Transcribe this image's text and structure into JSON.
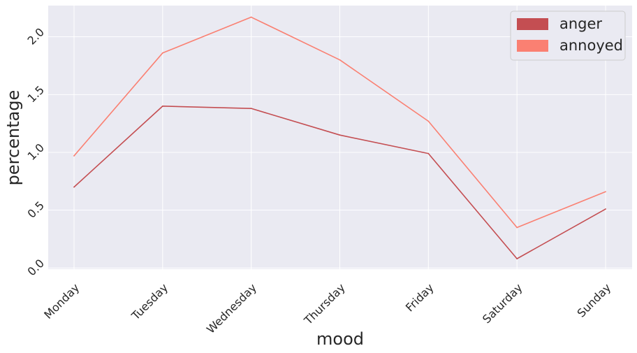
{
  "chart_data": {
    "type": "line",
    "xlabel": "mood",
    "ylabel": "percentage",
    "categories": [
      "Monday",
      "Tuesday",
      "Wednesday",
      "Thursday",
      "Friday",
      "Saturday",
      "Sunday"
    ],
    "ylim": [
      -0.01,
      2.27
    ],
    "yticks": [
      "0.0",
      "0.5",
      "1.0",
      "1.5",
      "2.0"
    ],
    "series": [
      {
        "name": "anger",
        "color": "#c44e52",
        "values": [
          0.7,
          1.4,
          1.38,
          1.15,
          0.99,
          0.08,
          0.51
        ]
      },
      {
        "name": "annoyed",
        "color": "#fa8072",
        "values": [
          0.97,
          1.86,
          2.17,
          1.8,
          1.27,
          0.35,
          0.66
        ]
      }
    ],
    "legend_position": "top-right",
    "grid": true,
    "background_color": "#eaeaf2"
  }
}
